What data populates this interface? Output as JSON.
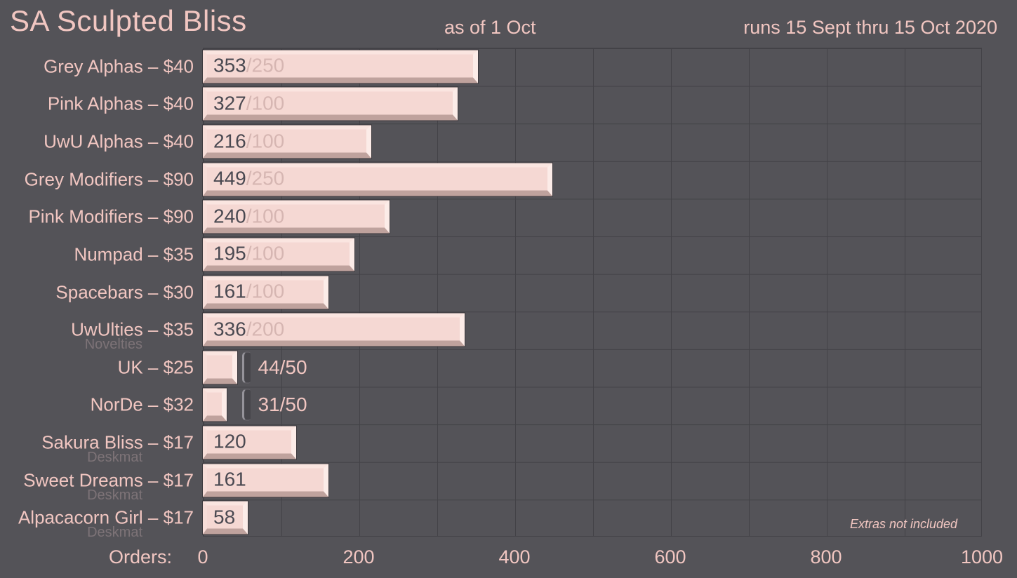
{
  "header": {
    "title": "SA Sculpted Bliss",
    "as_of": "as of 1 Oct",
    "runs": "runs 15 Sept thru 15 Oct 2020"
  },
  "axis": {
    "label": "Orders:",
    "ticks": [
      0,
      200,
      400,
      600,
      800,
      1000
    ]
  },
  "note": "Extras not included",
  "rows": [
    {
      "label": "Grey Alphas – $40",
      "sublabel": null,
      "value": 353,
      "goal": 250,
      "value_text": "353",
      "goal_text": "/250",
      "goal_outside": false,
      "outside_text": null
    },
    {
      "label": "Pink Alphas – $40",
      "sublabel": null,
      "value": 327,
      "goal": 100,
      "value_text": "327",
      "goal_text": "/100",
      "goal_outside": false,
      "outside_text": null
    },
    {
      "label": "UwU Alphas – $40",
      "sublabel": null,
      "value": 216,
      "goal": 100,
      "value_text": "216",
      "goal_text": "/100",
      "goal_outside": false,
      "outside_text": null
    },
    {
      "label": "Grey Modifiers – $90",
      "sublabel": null,
      "value": 449,
      "goal": 250,
      "value_text": "449",
      "goal_text": "/250",
      "goal_outside": false,
      "outside_text": null
    },
    {
      "label": "Pink Modifiers – $90",
      "sublabel": null,
      "value": 240,
      "goal": 100,
      "value_text": "240",
      "goal_text": "/100",
      "goal_outside": false,
      "outside_text": null
    },
    {
      "label": "Numpad – $35",
      "sublabel": null,
      "value": 195,
      "goal": 100,
      "value_text": "195",
      "goal_text": "/100",
      "goal_outside": false,
      "outside_text": null
    },
    {
      "label": "Spacebars – $30",
      "sublabel": null,
      "value": 161,
      "goal": 100,
      "value_text": "161",
      "goal_text": "/100",
      "goal_outside": false,
      "outside_text": null
    },
    {
      "label": "UwUlties – $35",
      "sublabel": "Novelties",
      "value": 336,
      "goal": 200,
      "value_text": "336",
      "goal_text": "/200",
      "goal_outside": false,
      "outside_text": null
    },
    {
      "label": "UK – $25",
      "sublabel": null,
      "value": 44,
      "goal": 50,
      "value_text": null,
      "goal_text": null,
      "goal_outside": true,
      "outside_text": "44/50"
    },
    {
      "label": "NorDe – $32",
      "sublabel": null,
      "value": 31,
      "goal": 50,
      "value_text": null,
      "goal_text": null,
      "goal_outside": true,
      "outside_text": "31/50"
    },
    {
      "label": "Sakura Bliss – $17",
      "sublabel": "Deskmat",
      "value": 120,
      "goal": null,
      "value_text": "120",
      "goal_text": null,
      "goal_outside": false,
      "outside_text": null
    },
    {
      "label": "Sweet Dreams – $17",
      "sublabel": "Deskmat",
      "value": 161,
      "goal": null,
      "value_text": "161",
      "goal_text": null,
      "goal_outside": false,
      "outside_text": null
    },
    {
      "label": "Alpacacorn Girl – $17",
      "sublabel": "Deskmat",
      "value": 58,
      "goal": null,
      "value_text": "58",
      "goal_text": null,
      "goal_outside": false,
      "outside_text": null
    }
  ],
  "colors": {
    "background": "#545358",
    "grid": "#434247",
    "bar_face": "#f5d8d3",
    "bar_bevel_light": "#fae5e0",
    "bar_bevel_dark": "#bfa29d",
    "accent_text": "#f1c6c1",
    "value_text": "#4a4951",
    "goal_text": "#d6b6b2",
    "sublabel_text": "#7d7377"
  },
  "chart_data": {
    "type": "bar",
    "orientation": "horizontal",
    "title": "SA Sculpted Bliss",
    "subtitle": "as of 1 Oct",
    "date_range": "runs 15 Sept thru 15 Oct 2020",
    "xlabel": "Orders:",
    "xlim": [
      0,
      1000
    ],
    "grid": true,
    "grid_step": 100,
    "annotations": [
      "Extras not included"
    ],
    "categories": [
      "Grey Alphas – $40",
      "Pink Alphas – $40",
      "UwU Alphas – $40",
      "Grey Modifiers – $90",
      "Pink Modifiers – $90",
      "Numpad – $35",
      "Spacebars – $30",
      "UwUlties – $35 (Novelties)",
      "UK – $25",
      "NorDe – $32",
      "Sakura Bliss – $17 (Deskmat)",
      "Sweet Dreams – $17 (Deskmat)",
      "Alpacacorn Girl – $17 (Deskmat)"
    ],
    "series": [
      {
        "name": "orders",
        "values": [
          353,
          327,
          216,
          449,
          240,
          195,
          161,
          336,
          44,
          31,
          120,
          161,
          58
        ]
      },
      {
        "name": "goal",
        "values": [
          250,
          100,
          100,
          250,
          100,
          100,
          100,
          200,
          50,
          50,
          null,
          null,
          null
        ]
      }
    ]
  }
}
